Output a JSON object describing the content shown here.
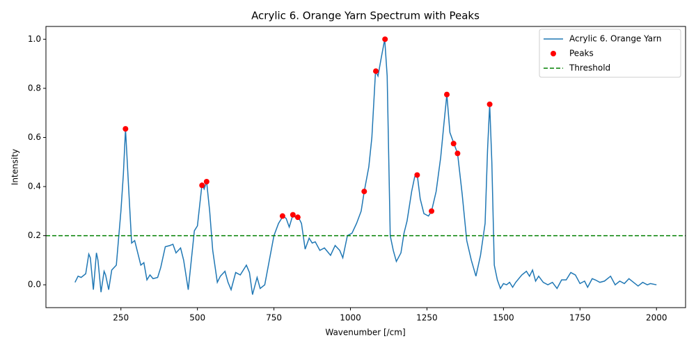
{
  "chart_data": {
    "type": "line",
    "title": "Acrylic 6. Orange Yarn Spectrum with Peaks",
    "x_label": "Wavenumber [/cm]",
    "y_label": "Intensity",
    "xlim": [
      5,
      2095
    ],
    "ylim": [
      -0.093,
      1.052
    ],
    "xticks": [
      250,
      500,
      750,
      1000,
      1250,
      1500,
      1750,
      2000
    ],
    "yticks": [
      {
        "value": 0,
        "label": "0.0"
      },
      0.2,
      0.4,
      0.6,
      0.8,
      {
        "value": 1,
        "label": "1.0"
      }
    ],
    "legend": "upper right",
    "series": [
      {
        "name": "Acrylic 6. Orange Yarn",
        "color": "#1f77b4",
        "x": [
          100,
          110,
          120,
          135,
          145,
          150,
          160,
          170,
          175,
          185,
          195,
          200,
          210,
          220,
          235,
          250,
          258,
          265,
          275,
          285,
          295,
          305,
          315,
          325,
          335,
          345,
          355,
          370,
          380,
          395,
          410,
          420,
          430,
          445,
          455,
          470,
          480,
          490,
          500,
          515,
          522,
          530,
          540,
          550,
          565,
          575,
          590,
          600,
          610,
          625,
          640,
          660,
          670,
          680,
          695,
          705,
          720,
          735,
          750,
          765,
          780,
          790,
          800,
          812,
          820,
          830,
          840,
          852,
          865,
          875,
          885,
          900,
          915,
          935,
          950,
          965,
          975,
          990,
          1005,
          1020,
          1035,
          1045,
          1060,
          1070,
          1082,
          1090,
          1100,
          1112,
          1120,
          1130,
          1140,
          1150,
          1165,
          1175,
          1185,
          1200,
          1210,
          1218,
          1228,
          1240,
          1255,
          1265,
          1280,
          1295,
          1305,
          1315,
          1325,
          1338,
          1350,
          1365,
          1380,
          1395,
          1410,
          1425,
          1440,
          1448,
          1455,
          1462,
          1470,
          1480,
          1490,
          1500,
          1510,
          1520,
          1530,
          1540,
          1560,
          1575,
          1585,
          1595,
          1605,
          1615,
          1630,
          1645,
          1660,
          1675,
          1690,
          1705,
          1720,
          1735,
          1750,
          1765,
          1775,
          1790,
          1800,
          1815,
          1830,
          1850,
          1865,
          1880,
          1895,
          1910,
          1925,
          1940,
          1955,
          1970,
          1980,
          2000
        ],
        "values": [
          0.01,
          0.035,
          0.03,
          0.045,
          0.125,
          0.11,
          -0.02,
          0.13,
          0.1,
          -0.03,
          0.055,
          0.04,
          -0.02,
          0.06,
          0.08,
          0.3,
          0.45,
          0.635,
          0.4,
          0.17,
          0.18,
          0.13,
          0.08,
          0.09,
          0.02,
          0.04,
          0.025,
          0.03,
          0.07,
          0.155,
          0.16,
          0.165,
          0.13,
          0.15,
          0.1,
          -0.02,
          0.1,
          0.22,
          0.24,
          0.41,
          0.39,
          0.42,
          0.3,
          0.14,
          0.01,
          0.035,
          0.055,
          0.01,
          -0.02,
          0.05,
          0.04,
          0.08,
          0.05,
          -0.04,
          0.03,
          -0.015,
          0.0,
          0.1,
          0.2,
          0.25,
          0.28,
          0.27,
          0.235,
          0.285,
          0.275,
          0.275,
          0.25,
          0.145,
          0.19,
          0.17,
          0.175,
          0.14,
          0.15,
          0.12,
          0.16,
          0.14,
          0.11,
          0.2,
          0.21,
          0.25,
          0.3,
          0.38,
          0.48,
          0.6,
          0.87,
          0.85,
          0.92,
          1.0,
          0.85,
          0.2,
          0.14,
          0.095,
          0.13,
          0.21,
          0.26,
          0.38,
          0.44,
          0.45,
          0.35,
          0.29,
          0.28,
          0.3,
          0.38,
          0.52,
          0.65,
          0.775,
          0.62,
          0.575,
          0.535,
          0.37,
          0.18,
          0.1,
          0.035,
          0.12,
          0.25,
          0.55,
          0.735,
          0.5,
          0.08,
          0.02,
          -0.015,
          0.005,
          0.0,
          0.01,
          -0.01,
          0.01,
          0.04,
          0.055,
          0.035,
          0.06,
          0.015,
          0.035,
          0.01,
          0.0,
          0.01,
          -0.015,
          0.02,
          0.02,
          0.05,
          0.04,
          0.005,
          0.015,
          -0.01,
          0.025,
          0.02,
          0.01,
          0.015,
          0.035,
          0.0,
          0.015,
          0.005,
          0.025,
          0.01,
          -0.005,
          0.01,
          0.0,
          0.005,
          0.0
        ]
      },
      {
        "name": "Peaks",
        "color": "#ff0000",
        "type": "scatter",
        "x": [
          265,
          515,
          530,
          778,
          812,
          828,
          1045,
          1083,
          1113,
          1218,
          1265,
          1315,
          1337,
          1350,
          1455
        ],
        "values": [
          0.635,
          0.405,
          0.42,
          0.28,
          0.285,
          0.275,
          0.38,
          0.87,
          1.0,
          0.447,
          0.3,
          0.775,
          0.575,
          0.535,
          0.735
        ]
      }
    ],
    "threshold": {
      "name": "Threshold",
      "value": 0.2,
      "color": "#008000"
    }
  }
}
